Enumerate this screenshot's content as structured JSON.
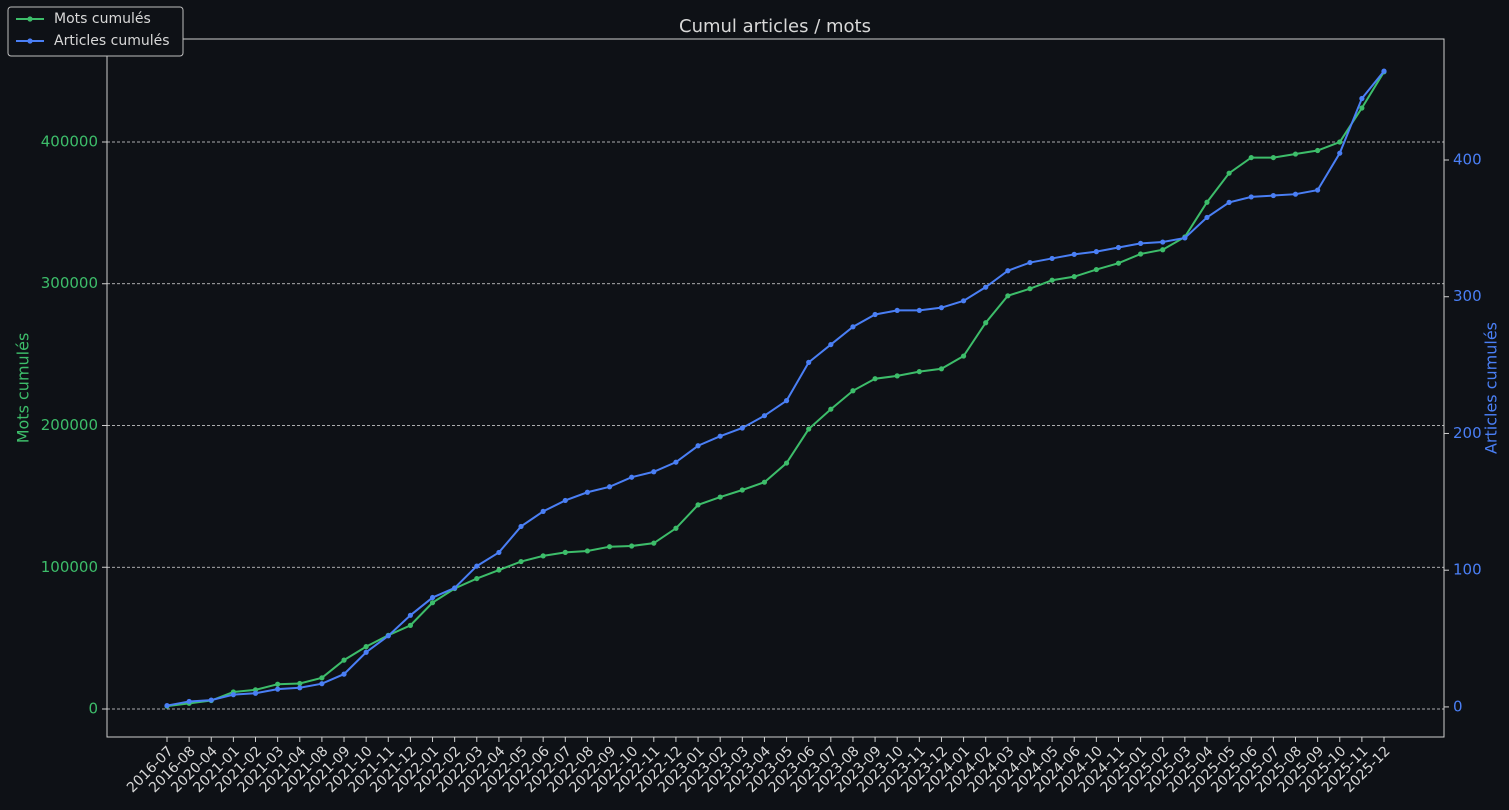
{
  "chart_data": {
    "type": "line",
    "title": "Cumul articles / mots",
    "y_label": "Mots cumulés",
    "y2_label": "Articles cumulés",
    "legend": "upper left",
    "grid": true,
    "categories": [
      "2016-07",
      "2016-08",
      "2020-04",
      "2021-01",
      "2021-02",
      "2021-03",
      "2021-04",
      "2021-08",
      "2021-09",
      "2021-10",
      "2021-11",
      "2021-12",
      "2022-01",
      "2022-02",
      "2022-03",
      "2022-04",
      "2022-05",
      "2022-06",
      "2022-07",
      "2022-08",
      "2022-09",
      "2022-10",
      "2022-11",
      "2022-12",
      "2023-01",
      "2023-02",
      "2023-03",
      "2023-04",
      "2023-05",
      "2023-06",
      "2023-07",
      "2023-08",
      "2023-09",
      "2023-10",
      "2023-11",
      "2023-12",
      "2024-01",
      "2024-02",
      "2024-03",
      "2024-04",
      "2024-05",
      "2024-06",
      "2024-10",
      "2024-11",
      "2025-01",
      "2025-02",
      "2025-03",
      "2025-04",
      "2025-05",
      "2025-06",
      "2025-07",
      "2025-08",
      "2025-09",
      "2025-10",
      "2025-11",
      "2025-12"
    ],
    "ylim": [
      -19750,
      472660
    ],
    "yticks": [
      0,
      100000,
      200000,
      300000,
      400000
    ],
    "y2lim": [
      -22,
      488.5
    ],
    "y2ticks": [
      0,
      100,
      200,
      300,
      400
    ],
    "series": [
      {
        "name": "Mots cumulés",
        "color": "#3dbd6a",
        "values": [
          2000,
          4000,
          6000,
          12000,
          13500,
          17500,
          18000,
          22000,
          34500,
          44000,
          52000,
          59000,
          75000,
          85000,
          92000,
          98000,
          104000,
          108000,
          110500,
          111500,
          114500,
          115000,
          117000,
          127500,
          144000,
          149500,
          154500,
          160000,
          173500,
          197500,
          211500,
          224500,
          233000,
          235000,
          238000,
          240000,
          249000,
          272500,
          291500,
          296500,
          302500,
          305000,
          310000,
          314500,
          321000,
          324000,
          333000,
          357500,
          378000,
          389000,
          389000,
          391500,
          394000,
          400000,
          424000,
          449500
        ]
      },
      {
        "name": "Articles cumulés",
        "color": "#4a7ff5",
        "axis": "y2",
        "values": [
          1,
          4,
          5,
          9,
          10,
          13,
          14,
          17,
          24,
          40,
          52,
          67,
          80,
          87,
          103,
          113,
          132,
          143,
          151,
          157,
          161,
          168,
          172,
          179,
          191,
          198,
          204,
          213,
          224,
          252,
          265,
          278,
          287,
          290,
          290,
          292,
          297,
          307,
          319,
          325,
          328,
          331,
          333,
          336,
          339,
          340,
          343,
          358,
          369,
          373,
          374,
          375,
          378,
          405,
          445,
          465
        ]
      }
    ]
  }
}
